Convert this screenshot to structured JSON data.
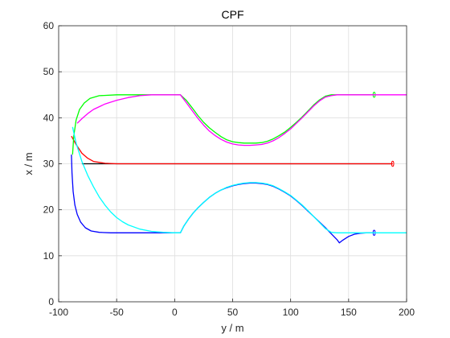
{
  "chart_data": {
    "type": "line",
    "title": "CPF",
    "xlabel": "y / m",
    "ylabel": "x / m",
    "xlim": [
      -100,
      200
    ],
    "ylim": [
      0,
      60
    ],
    "xticks": [
      -100,
      -50,
      0,
      50,
      100,
      150,
      200
    ],
    "yticks": [
      0,
      10,
      20,
      30,
      40,
      50,
      60
    ],
    "xtick_labels": [
      "-100",
      "-50",
      "0",
      "50",
      "100",
      "150",
      "200"
    ],
    "ytick_labels": [
      "0",
      "10",
      "20",
      "30",
      "40",
      "50",
      "60"
    ],
    "grid": true,
    "series": [
      {
        "color": "#000000",
        "points": [
          [
            -80,
            30
          ],
          [
            0,
            30
          ],
          [
            50,
            30
          ],
          [
            100,
            30
          ],
          [
            150,
            30
          ],
          [
            187,
            30
          ]
        ]
      },
      {
        "color": "#ff0000",
        "points": [
          [
            -89,
            36
          ],
          [
            -85,
            34.2
          ],
          [
            -80,
            32.3
          ],
          [
            -75,
            31.2
          ],
          [
            -70,
            30.5
          ],
          [
            -60,
            30.1
          ],
          [
            -50,
            30
          ],
          [
            -30,
            30
          ],
          [
            0,
            30
          ],
          [
            100,
            30
          ],
          [
            188,
            30
          ]
        ],
        "end_marker": [
          188,
          30
        ]
      },
      {
        "color": "#00ff00",
        "points": [
          [
            -88,
            32
          ],
          [
            -87,
            36
          ],
          [
            -85,
            39.5
          ],
          [
            -82,
            41.8
          ],
          [
            -78,
            43.2
          ],
          [
            -73,
            44.2
          ],
          [
            -65,
            44.8
          ],
          [
            -50,
            45
          ],
          [
            -30,
            45
          ],
          [
            0,
            45
          ],
          [
            5,
            45
          ],
          [
            10,
            43.8
          ],
          [
            15,
            42.2
          ],
          [
            20,
            40.5
          ],
          [
            25,
            39
          ],
          [
            30,
            37.8
          ],
          [
            35,
            36.8
          ],
          [
            40,
            35.9
          ],
          [
            45,
            35.2
          ],
          [
            50,
            34.8
          ],
          [
            55,
            34.6
          ],
          [
            60,
            34.5
          ],
          [
            65,
            34.5
          ],
          [
            70,
            34.5
          ],
          [
            75,
            34.6
          ],
          [
            80,
            34.9
          ],
          [
            85,
            35.4
          ],
          [
            90,
            36.1
          ],
          [
            95,
            36.9
          ],
          [
            100,
            37.9
          ],
          [
            105,
            39
          ],
          [
            110,
            40.2
          ],
          [
            115,
            41.5
          ],
          [
            120,
            42.8
          ],
          [
            125,
            43.9
          ],
          [
            130,
            44.7
          ],
          [
            135,
            45
          ],
          [
            150,
            45
          ],
          [
            172,
            45
          ]
        ],
        "end_marker": [
          172,
          45
        ]
      },
      {
        "color": "#ff00ff",
        "points": [
          [
            -84,
            38.8
          ],
          [
            -80,
            39.8
          ],
          [
            -75,
            40.9
          ],
          [
            -70,
            41.8
          ],
          [
            -60,
            43
          ],
          [
            -50,
            43.8
          ],
          [
            -40,
            44.4
          ],
          [
            -30,
            44.8
          ],
          [
            -20,
            45
          ],
          [
            0,
            45
          ],
          [
            5,
            45
          ],
          [
            10,
            43.3
          ],
          [
            15,
            41.6
          ],
          [
            20,
            39.9
          ],
          [
            25,
            38.4
          ],
          [
            30,
            37.1
          ],
          [
            35,
            36.1
          ],
          [
            40,
            35.3
          ],
          [
            45,
            34.7
          ],
          [
            50,
            34.3
          ],
          [
            55,
            34.1
          ],
          [
            60,
            34
          ],
          [
            65,
            34
          ],
          [
            70,
            34.1
          ],
          [
            75,
            34.2
          ],
          [
            80,
            34.5
          ],
          [
            85,
            35
          ],
          [
            90,
            35.7
          ],
          [
            95,
            36.6
          ],
          [
            100,
            37.6
          ],
          [
            105,
            38.8
          ],
          [
            110,
            40
          ],
          [
            115,
            41.3
          ],
          [
            120,
            42.6
          ],
          [
            125,
            43.7
          ],
          [
            130,
            44.5
          ],
          [
            135,
            44.8
          ],
          [
            140,
            45
          ],
          [
            200,
            45
          ]
        ]
      },
      {
        "color": "#0000ff",
        "points": [
          [
            -89,
            32
          ],
          [
            -88.5,
            28
          ],
          [
            -87.5,
            24
          ],
          [
            -86,
            21
          ],
          [
            -84,
            19
          ],
          [
            -81,
            17.3
          ],
          [
            -77,
            16.1
          ],
          [
            -72,
            15.4
          ],
          [
            -65,
            15.1
          ],
          [
            -55,
            15
          ],
          [
            -30,
            15
          ],
          [
            0,
            15
          ],
          [
            5,
            15
          ],
          [
            8,
            16.5
          ],
          [
            12,
            18
          ],
          [
            16,
            19.3
          ],
          [
            20,
            20.4
          ],
          [
            25,
            21.6
          ],
          [
            30,
            22.7
          ],
          [
            35,
            23.6
          ],
          [
            40,
            24.3
          ],
          [
            45,
            24.8
          ],
          [
            50,
            25.2
          ],
          [
            55,
            25.5
          ],
          [
            60,
            25.7
          ],
          [
            65,
            25.8
          ],
          [
            70,
            25.8
          ],
          [
            75,
            25.7
          ],
          [
            80,
            25.5
          ],
          [
            85,
            25.1
          ],
          [
            90,
            24.5
          ],
          [
            95,
            23.8
          ],
          [
            100,
            23
          ],
          [
            105,
            22
          ],
          [
            110,
            20.9
          ],
          [
            115,
            19.7
          ],
          [
            120,
            18.5
          ],
          [
            125,
            17.3
          ],
          [
            130,
            16.1
          ],
          [
            135,
            14.8
          ],
          [
            140,
            13.5
          ],
          [
            142,
            12.8
          ],
          [
            145,
            13.4
          ],
          [
            150,
            14.2
          ],
          [
            155,
            14.7
          ],
          [
            160,
            14.9
          ],
          [
            165,
            15
          ],
          [
            172,
            15
          ]
        ],
        "end_marker": [
          172,
          15
        ]
      },
      {
        "color": "#00ffff",
        "points": [
          [
            -88,
            38
          ],
          [
            -85,
            34.5
          ],
          [
            -80,
            30.5
          ],
          [
            -75,
            27.5
          ],
          [
            -70,
            25
          ],
          [
            -65,
            22.8
          ],
          [
            -60,
            21
          ],
          [
            -55,
            19.5
          ],
          [
            -50,
            18.3
          ],
          [
            -45,
            17.4
          ],
          [
            -40,
            16.7
          ],
          [
            -30,
            15.8
          ],
          [
            -20,
            15.3
          ],
          [
            -10,
            15.1
          ],
          [
            0,
            15
          ],
          [
            5,
            15
          ],
          [
            8,
            16.5
          ],
          [
            12,
            18
          ],
          [
            16,
            19.3
          ],
          [
            20,
            20.4
          ],
          [
            25,
            21.6
          ],
          [
            30,
            22.7
          ],
          [
            35,
            23.6
          ],
          [
            40,
            24.3
          ],
          [
            45,
            24.9
          ],
          [
            50,
            25.3
          ],
          [
            55,
            25.6
          ],
          [
            60,
            25.8
          ],
          [
            65,
            25.9
          ],
          [
            70,
            25.9
          ],
          [
            75,
            25.8
          ],
          [
            80,
            25.6
          ],
          [
            85,
            25.2
          ],
          [
            90,
            24.6
          ],
          [
            95,
            23.9
          ],
          [
            100,
            23.1
          ],
          [
            105,
            22.1
          ],
          [
            110,
            21
          ],
          [
            115,
            19.8
          ],
          [
            120,
            18.5
          ],
          [
            125,
            17.2
          ],
          [
            130,
            15.9
          ],
          [
            135,
            15.1
          ],
          [
            140,
            15
          ],
          [
            200,
            15
          ]
        ]
      }
    ]
  }
}
